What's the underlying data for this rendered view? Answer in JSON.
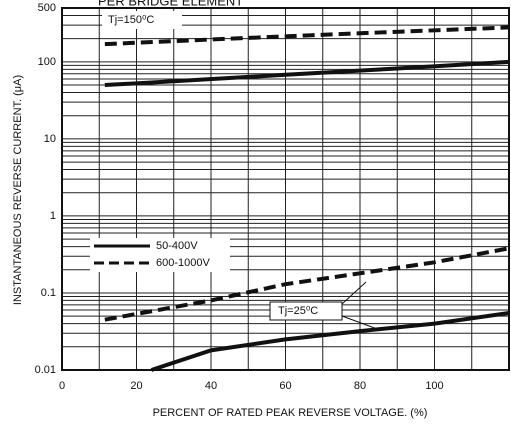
{
  "chart_data": {
    "type": "line",
    "title": "PER BRIDGE ELEMENT",
    "x_label": "PERCENT OF RATED PEAK REVERSE VOLTAGE. (%)",
    "y_label": "INSTANTANEOUS REVERSE CURRENT. (μA)",
    "log_y": true,
    "grid": true,
    "xlim": [
      0,
      120
    ],
    "ylim": [
      0.01,
      500
    ],
    "xticks": [
      0,
      20,
      40,
      60,
      80,
      100
    ],
    "yticks": [
      0.01,
      0.1,
      1,
      10,
      100,
      500
    ],
    "annotations": [
      "Tj=150⁰C",
      "Tj=25⁰C"
    ],
    "series": [
      {
        "name": "50-400V",
        "dash": false,
        "color": "#111111",
        "x": [
          11.5,
          30,
          60,
          90,
          120
        ],
        "values": [
          50,
          56,
          68,
          82,
          100
        ]
      },
      {
        "name": "600-1000V",
        "dash": true,
        "color": "#111111",
        "x": [
          11.5,
          40,
          80,
          120
        ],
        "values": [
          170,
          195,
          235,
          280
        ]
      },
      {
        "name": "50-400V",
        "dash": false,
        "color": "#111111",
        "x": [
          24,
          40,
          60,
          80,
          100,
          120
        ],
        "values": [
          0.01,
          0.018,
          0.025,
          0.032,
          0.04,
          0.055
        ]
      },
      {
        "name": "600-1000V",
        "dash": true,
        "color": "#111111",
        "x": [
          11.5,
          40,
          60,
          80,
          100,
          120
        ],
        "values": [
          0.045,
          0.08,
          0.13,
          0.18,
          0.25,
          0.38
        ]
      }
    ]
  }
}
